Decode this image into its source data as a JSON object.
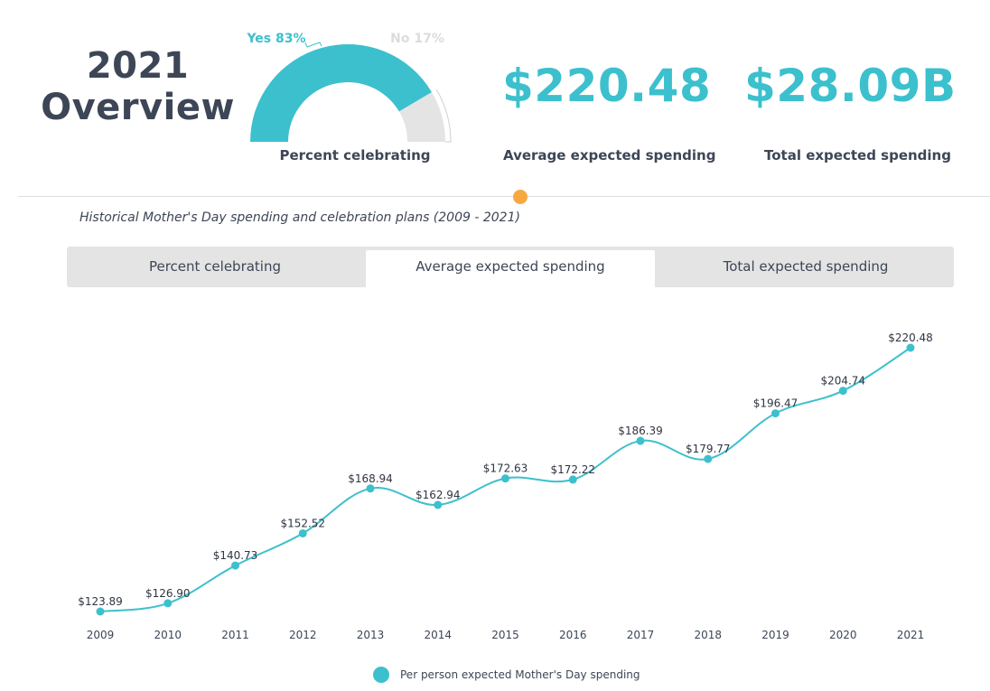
{
  "overview": {
    "title_line1": "2021",
    "title_line2": "Overview"
  },
  "gauge": {
    "yes_label": "Yes 83%",
    "no_label": "No 17%",
    "yes_fraction": 0.83,
    "caption": "Percent celebrating",
    "yes_color": "#3cc0cd",
    "no_color": "#e4e4e4"
  },
  "stats": [
    {
      "value": "$220.48",
      "caption": "Average expected spending"
    },
    {
      "value": "$28.09B",
      "caption": "Total expected spending"
    }
  ],
  "subtitle": "Historical Mother's Day spending and celebration plans (2009 - 2021)",
  "tabs": [
    {
      "label": "Percent celebrating",
      "active": false
    },
    {
      "label": "Average expected spending",
      "active": true
    },
    {
      "label": "Total expected spending",
      "active": false
    }
  ],
  "colors": {
    "accent": "#3cc0cd",
    "dot": "#f7a940",
    "text": "#3d4656"
  },
  "chart_data": {
    "type": "line",
    "categories": [
      "2009",
      "2010",
      "2011",
      "2012",
      "2013",
      "2014",
      "2015",
      "2016",
      "2017",
      "2018",
      "2019",
      "2020",
      "2021"
    ],
    "series": [
      {
        "name": "Per person expected Mother's Day spending",
        "values": [
          123.89,
          126.9,
          140.73,
          152.52,
          168.94,
          162.94,
          172.63,
          172.22,
          186.39,
          179.77,
          196.47,
          204.74,
          220.48
        ],
        "labels": [
          "$123.89",
          "$126.90",
          "$140.73",
          "$152.52",
          "$168.94",
          "$162.94",
          "$172.63",
          "$172.22",
          "$186.39",
          "$179.77",
          "$196.47",
          "$204.74",
          "$220.48"
        ]
      }
    ],
    "title": "",
    "xlabel": "",
    "ylabel": "",
    "grid": false,
    "legend_position": "bottom"
  }
}
